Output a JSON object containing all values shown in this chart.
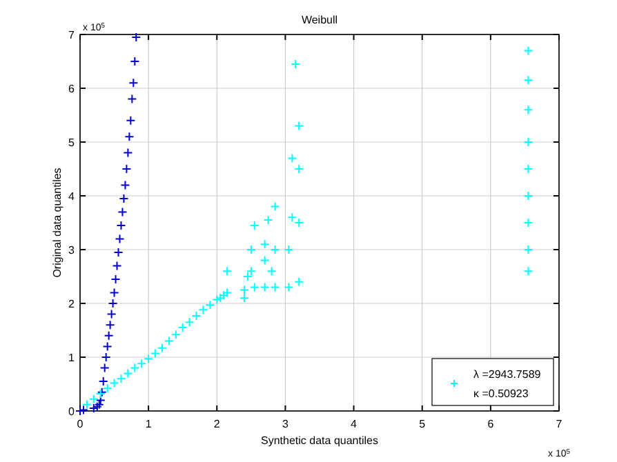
{
  "chart_data": {
    "type": "scatter",
    "title": "Weibull",
    "xlabel": "Synthetic data quantiles",
    "ylabel": "Original data quantiles",
    "xlim": [
      0,
      7
    ],
    "ylim": [
      0,
      7
    ],
    "xticks": [
      0,
      1,
      2,
      3,
      4,
      5,
      6,
      7
    ],
    "yticks": [
      0,
      1,
      2,
      3,
      4,
      5,
      6,
      7
    ],
    "grid": true,
    "legend": "bottom right",
    "marker": "cross",
    "annotations": [
      "x 10$^{5}$",
      "x 10$^{5}$"
    ],
    "series": [
      {
        "color": "#0000cc",
        "x": [
          0,
          0.05,
          0.2,
          0.25,
          0.28,
          0.3,
          0.32,
          0.34,
          0.36,
          0.38,
          0.4,
          0.42,
          0.44,
          0.46,
          0.48,
          0.5,
          0.52,
          0.54,
          0.56,
          0.58,
          0.6,
          0.62,
          0.64,
          0.66,
          0.68,
          0.7,
          0.72,
          0.74,
          0.76,
          0.78,
          0.8,
          0.82
        ],
        "values": [
          0,
          0.02,
          0.05,
          0.08,
          0.12,
          0.2,
          0.35,
          0.55,
          0.8,
          1.0,
          1.2,
          1.4,
          1.6,
          1.8,
          2.0,
          2.2,
          2.45,
          2.7,
          2.95,
          3.2,
          3.45,
          3.7,
          3.95,
          4.2,
          4.5,
          4.8,
          5.1,
          5.4,
          5.8,
          6.1,
          6.5,
          6.95
        ]
      },
      {
        "name": "λ =2943.7589\nκ =0.50923",
        "color": "#00ffff",
        "x": [
          0.1,
          0.2,
          0.3,
          0.4,
          0.5,
          0.6,
          0.7,
          0.8,
          0.9,
          1.0,
          1.1,
          1.2,
          1.3,
          1.4,
          1.5,
          1.6,
          1.7,
          1.8,
          1.9,
          2.0,
          2.05,
          2.1,
          2.15,
          2.15,
          2.4,
          2.45,
          2.5,
          2.55,
          2.4,
          2.5,
          2.55,
          2.7,
          2.7,
          2.75,
          2.7,
          2.85,
          2.85,
          2.85,
          2.8,
          3.05,
          3.05,
          3.1,
          3.1,
          3.2,
          3.2,
          3.2,
          3.2,
          3.15,
          6.55,
          6.55,
          6.55,
          6.55,
          6.55,
          6.55,
          6.55,
          6.55,
          6.55
        ],
        "values": [
          0.12,
          0.22,
          0.32,
          0.42,
          0.52,
          0.6,
          0.7,
          0.8,
          0.88,
          0.97,
          1.07,
          1.17,
          1.3,
          1.42,
          1.55,
          1.65,
          1.77,
          1.88,
          1.97,
          2.07,
          2.1,
          2.15,
          2.2,
          2.6,
          2.1,
          2.5,
          3.0,
          3.45,
          2.25,
          2.6,
          2.3,
          2.3,
          2.8,
          3.55,
          3.1,
          2.3,
          3.0,
          3.8,
          2.6,
          2.3,
          3.0,
          3.6,
          4.7,
          2.4,
          3.5,
          4.5,
          5.3,
          6.45,
          2.6,
          3.0,
          3.5,
          4.0,
          4.5,
          5.0,
          5.6,
          6.15,
          6.7
        ]
      }
    ]
  }
}
